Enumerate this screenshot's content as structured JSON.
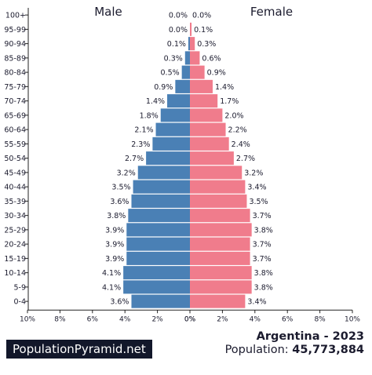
{
  "chart_data": {
    "type": "bar",
    "subtype": "population-pyramid",
    "left_label": "Male",
    "right_label": "Female",
    "categories": [
      "100+",
      "95-99",
      "90-94",
      "85-89",
      "80-84",
      "75-79",
      "70-74",
      "65-69",
      "60-64",
      "55-59",
      "50-54",
      "45-49",
      "40-44",
      "35-39",
      "30-34",
      "25-29",
      "20-24",
      "15-19",
      "10-14",
      "5-9",
      "0-4"
    ],
    "series": [
      {
        "name": "Male",
        "color": "#4a80b5",
        "values": [
          0.0,
          0.0,
          0.1,
          0.3,
          0.5,
          0.9,
          1.4,
          1.8,
          2.1,
          2.3,
          2.7,
          3.2,
          3.5,
          3.6,
          3.8,
          3.9,
          3.9,
          3.9,
          4.1,
          4.1,
          3.6
        ],
        "labels": [
          "0.0%",
          "0.0%",
          "0.1%",
          "0.3%",
          "0.5%",
          "0.9%",
          "1.4%",
          "1.8%",
          "2.1%",
          "2.3%",
          "2.7%",
          "3.2%",
          "3.5%",
          "3.6%",
          "3.8%",
          "3.9%",
          "3.9%",
          "3.9%",
          "4.1%",
          "4.1%",
          "3.6%"
        ]
      },
      {
        "name": "Female",
        "color": "#f07c8c",
        "values": [
          0.0,
          0.1,
          0.3,
          0.6,
          0.9,
          1.4,
          1.7,
          2.0,
          2.2,
          2.4,
          2.7,
          3.2,
          3.4,
          3.5,
          3.7,
          3.8,
          3.7,
          3.7,
          3.8,
          3.8,
          3.4
        ],
        "labels": [
          "0.0%",
          "0.1%",
          "0.3%",
          "0.6%",
          "0.9%",
          "1.4%",
          "1.7%",
          "2.0%",
          "2.2%",
          "2.4%",
          "2.7%",
          "3.2%",
          "3.4%",
          "3.5%",
          "3.7%",
          "3.8%",
          "3.7%",
          "3.7%",
          "3.8%",
          "3.8%",
          "3.4%"
        ]
      }
    ],
    "xlim": [
      0,
      10
    ],
    "left_ticks": [
      "10%",
      "8%",
      "6%",
      "4%",
      "2%",
      "0%"
    ],
    "right_ticks": [
      "0%",
      "2%",
      "4%",
      "6%",
      "8%",
      "10%"
    ],
    "grid": false
  },
  "footer": {
    "brand": "PopulationPyramid.net",
    "country_year": "Argentina - 2023",
    "population_label": "Population: ",
    "population_value": "45,773,884"
  }
}
